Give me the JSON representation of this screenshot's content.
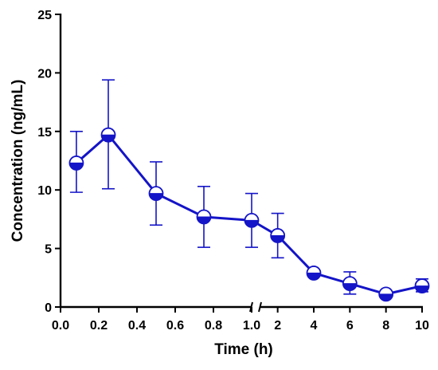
{
  "chart_data": {
    "type": "line",
    "title": "",
    "xlabel": "Time (h)",
    "ylabel": "Concentration (ng/mL)",
    "ylim": [
      0,
      25
    ],
    "x_axis": {
      "type": "broken",
      "segments": [
        {
          "range": [
            0.0,
            1.0
          ],
          "ticks": [
            0.0,
            0.2,
            0.4,
            0.6,
            0.8,
            1.0
          ],
          "tick_labels": [
            "0.0",
            "0.2",
            "0.4",
            "0.6",
            "0.8",
            "1.0"
          ]
        },
        {
          "range": [
            1.0,
            10.0
          ],
          "ticks": [
            2,
            4,
            6,
            8,
            10
          ],
          "tick_labels": [
            "2",
            "4",
            "6",
            "8",
            "10"
          ]
        }
      ]
    },
    "y_ticks": [
      0,
      5,
      10,
      15,
      20,
      25
    ],
    "y_tick_labels": [
      "0",
      "5",
      "10",
      "15",
      "20",
      "25"
    ],
    "grid": false,
    "legend": "none",
    "series": [
      {
        "color": "#1414c8",
        "marker": "half-filled-circle",
        "x": [
          0.083,
          0.25,
          0.5,
          0.75,
          1.0,
          2,
          4,
          6,
          8,
          10
        ],
        "y": [
          12.3,
          14.7,
          9.7,
          7.7,
          7.4,
          6.1,
          2.9,
          2.0,
          1.1,
          1.8
        ],
        "error_upper": [
          15.0,
          19.4,
          12.4,
          10.3,
          9.7,
          8.0,
          3.2,
          3.0,
          1.3,
          2.4
        ],
        "error_lower": [
          9.8,
          10.1,
          7.0,
          5.1,
          5.1,
          4.2,
          2.6,
          1.1,
          0.9,
          1.3
        ]
      }
    ]
  }
}
